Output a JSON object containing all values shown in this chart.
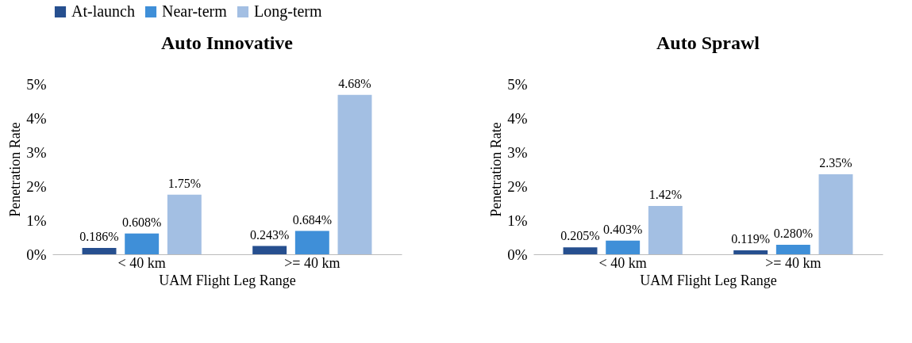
{
  "chart_data": [
    {
      "type": "bar",
      "title": "Auto Innovative",
      "xlabel": "UAM Flight Leg Range",
      "ylabel": "Penetration Rate",
      "categories": [
        "< 40 km",
        ">= 40 km"
      ],
      "series": [
        {
          "name": "At-launch",
          "color": "#264f8f",
          "values": [
            0.186,
            0.243
          ],
          "value_labels": [
            "0.186%",
            "0.243%"
          ]
        },
        {
          "name": "Near-term",
          "color": "#3f8fd8",
          "values": [
            0.608,
            0.684
          ],
          "value_labels": [
            "0.608%",
            "0.684%"
          ]
        },
        {
          "name": "Long-term",
          "color": "#a3bfe3",
          "values": [
            1.75,
            4.68
          ],
          "value_labels": [
            "1.75%",
            "4.68%"
          ]
        }
      ],
      "ylim": [
        0,
        5
      ],
      "yticks": [
        {
          "value": 0,
          "label": "0%"
        },
        {
          "value": 1,
          "label": "1%"
        },
        {
          "value": 2,
          "label": "2%"
        },
        {
          "value": 3,
          "label": "3%"
        },
        {
          "value": 4,
          "label": "4%"
        },
        {
          "value": 5,
          "label": "5%"
        }
      ],
      "grid": false,
      "legend": "top"
    },
    {
      "type": "bar",
      "title": "Auto Sprawl",
      "xlabel": "UAM Flight Leg Range",
      "ylabel": "Penetration Rate",
      "categories": [
        "< 40 km",
        ">= 40 km"
      ],
      "series": [
        {
          "name": "At-launch",
          "color": "#264f8f",
          "values": [
            0.205,
            0.119
          ],
          "value_labels": [
            "0.205%",
            "0.119%"
          ]
        },
        {
          "name": "Near-term",
          "color": "#3f8fd8",
          "values": [
            0.403,
            0.28
          ],
          "value_labels": [
            "0.403%",
            "0.280%"
          ]
        },
        {
          "name": "Long-term",
          "color": "#a3bfe3",
          "values": [
            1.42,
            2.35
          ],
          "value_labels": [
            "1.42%",
            "2.35%"
          ]
        }
      ],
      "ylim": [
        0,
        5
      ],
      "yticks": [
        {
          "value": 0,
          "label": "0%"
        },
        {
          "value": 1,
          "label": "1%"
        },
        {
          "value": 2,
          "label": "2%"
        },
        {
          "value": 3,
          "label": "3%"
        },
        {
          "value": 4,
          "label": "4%"
        },
        {
          "value": 5,
          "label": "5%"
        }
      ],
      "grid": false,
      "legend": "top"
    }
  ]
}
